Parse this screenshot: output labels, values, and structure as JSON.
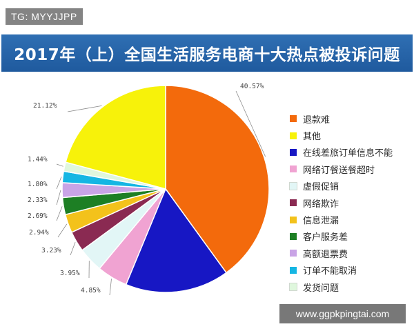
{
  "watermark": "TG: MYYJJPP",
  "footer_url": "www.ggpkpingtai.com",
  "chart_data": {
    "type": "pie",
    "title": "2017年（上）全国生活服务电商十大热点被投诉问题",
    "start_angle_deg": 0,
    "direction": "clockwise",
    "legend_placement": "right",
    "slices": [
      {
        "label": "退款难",
        "value": 40.57,
        "display": "40.57%",
        "color": "#f36a0c"
      },
      {
        "label": "在线差旅订单信息不能",
        "value": 16.44,
        "display": "",
        "color": "#1717c4"
      },
      {
        "label": "网络订餐送餐超时",
        "value": 4.85,
        "display": "4.85%",
        "color": "#f0a3d2"
      },
      {
        "label": "虚假促销",
        "value": 3.95,
        "display": "3.95%",
        "color": "#e2f6f6"
      },
      {
        "label": "网络欺诈",
        "value": 3.23,
        "display": "3.23%",
        "color": "#8a2a52"
      },
      {
        "label": "信息泄漏",
        "value": 2.94,
        "display": "2.94%",
        "color": "#f3c21b"
      },
      {
        "label": "客户服务差",
        "value": 2.69,
        "display": "2.69%",
        "color": "#1d7f24"
      },
      {
        "label": "高额退票费",
        "value": 2.33,
        "display": "2.33%",
        "color": "#c9a4e6"
      },
      {
        "label": "订单不能取消",
        "value": 1.8,
        "display": "1.80%",
        "color": "#15b6e3"
      },
      {
        "label": "发货问题",
        "value": 1.44,
        "display": "1.44%",
        "color": "#dff7dd"
      },
      {
        "label": "其他",
        "value": 21.12,
        "display": "21.12%",
        "color": "#f7f20a"
      }
    ],
    "legend": [
      {
        "label": "退款难",
        "color": "#f36a0c"
      },
      {
        "label": "其他",
        "color": "#f7f20a"
      },
      {
        "label": "在线差旅订单信息不能",
        "color": "#1717c4"
      },
      {
        "label": "网络订餐送餐超时",
        "color": "#f0a3d2"
      },
      {
        "label": "虚假促销",
        "color": "#e2f6f6"
      },
      {
        "label": "网络欺诈",
        "color": "#8a2a52"
      },
      {
        "label": "信息泄漏",
        "color": "#f3c21b"
      },
      {
        "label": "客户服务差",
        "color": "#1d7f24"
      },
      {
        "label": "高额退票费",
        "color": "#c9a4e6"
      },
      {
        "label": "订单不能取消",
        "color": "#15b6e3"
      },
      {
        "label": "发货问题",
        "color": "#dff7dd"
      }
    ]
  }
}
